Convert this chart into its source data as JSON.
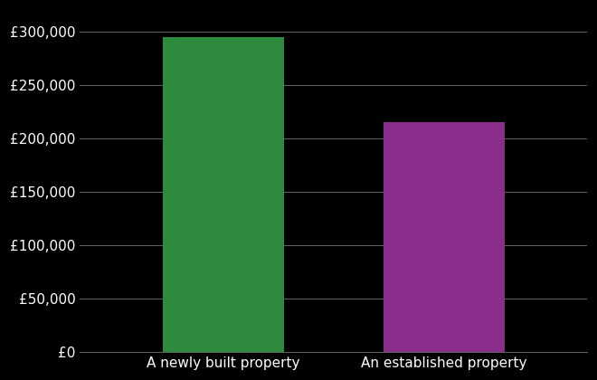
{
  "categories": [
    "A newly built property",
    "An established property"
  ],
  "values": [
    295000,
    215000
  ],
  "bar_colors": [
    "#2e8b3e",
    "#8b2d8b"
  ],
  "background_color": "#000000",
  "text_color": "#ffffff",
  "grid_color": "#666666",
  "ylim": [
    0,
    320000
  ],
  "yticks": [
    0,
    50000,
    100000,
    150000,
    200000,
    250000,
    300000
  ],
  "bar_width": 0.55,
  "figsize": [
    6.6,
    4.2
  ],
  "dpi": 100,
  "xlabel_fontsize": 11,
  "ylabel_fontsize": 11
}
